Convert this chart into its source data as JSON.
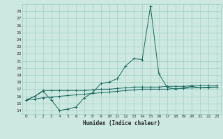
{
  "xlabel": "Humidex (Indice chaleur)",
  "bg_color": "#cce8e0",
  "grid_color": "#99ccbb",
  "line_color": "#1a6b5e",
  "xlim": [
    -0.5,
    23.5
  ],
  "ylim": [
    13.5,
    29.0
  ],
  "yticks": [
    14,
    15,
    16,
    17,
    18,
    19,
    20,
    21,
    22,
    23,
    24,
    25,
    26,
    27,
    28
  ],
  "xticks": [
    0,
    1,
    2,
    3,
    4,
    5,
    6,
    7,
    8,
    9,
    10,
    11,
    12,
    13,
    14,
    15,
    16,
    17,
    18,
    19,
    20,
    21,
    22,
    23
  ],
  "line1_x": [
    0,
    1,
    2,
    3,
    4,
    5,
    6,
    7,
    8,
    9,
    10,
    11,
    12,
    13,
    14,
    15,
    16,
    17,
    18,
    19,
    20,
    21,
    22,
    23
  ],
  "line1_y": [
    15.5,
    16.0,
    16.7,
    15.5,
    14.0,
    14.2,
    14.5,
    15.8,
    16.5,
    17.8,
    18.0,
    18.5,
    20.3,
    21.3,
    21.2,
    28.7,
    19.2,
    17.3,
    17.0,
    17.2,
    17.4,
    17.2,
    17.2,
    17.3
  ],
  "line2_x": [
    0,
    1,
    2,
    3,
    4,
    5,
    6,
    7,
    8,
    9,
    10,
    11,
    12,
    13,
    14,
    15,
    16,
    17,
    18,
    19,
    20,
    21,
    22,
    23
  ],
  "line2_y": [
    15.5,
    16.0,
    16.8,
    16.8,
    16.8,
    16.8,
    16.8,
    16.8,
    16.9,
    17.0,
    17.0,
    17.1,
    17.2,
    17.3,
    17.3,
    17.3,
    17.3,
    17.4,
    17.4,
    17.4,
    17.5,
    17.5,
    17.5,
    17.5
  ],
  "line3_x": [
    0,
    1,
    2,
    3,
    4,
    5,
    6,
    7,
    8,
    9,
    10,
    11,
    12,
    13,
    14,
    15,
    16,
    17,
    18,
    19,
    20,
    21,
    22,
    23
  ],
  "line3_y": [
    15.5,
    15.6,
    15.8,
    15.9,
    16.0,
    16.1,
    16.2,
    16.3,
    16.4,
    16.5,
    16.6,
    16.7,
    16.8,
    16.9,
    17.0,
    17.0,
    17.0,
    17.0,
    17.1,
    17.1,
    17.2,
    17.2,
    17.3,
    17.3
  ]
}
